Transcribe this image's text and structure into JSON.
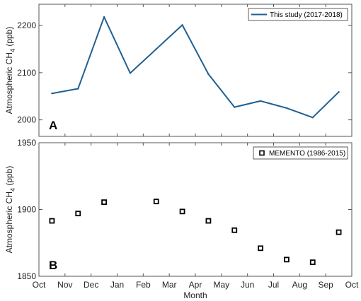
{
  "chart_data": [
    {
      "type": "line",
      "panel_label": "A",
      "ylabel": "Atmospheric CH",
      "ylabel_sub": "4",
      "ylabel_unit": " (ppb)",
      "ylim": [
        1965,
        2245
      ],
      "yticks": [
        2000,
        2100,
        2200
      ],
      "x_months": [
        "Oct",
        "Nov",
        "Dec",
        "Jan",
        "Feb",
        "Mar",
        "Apr",
        "May",
        "Jun",
        "Jul",
        "Aug",
        "Sep",
        "Oct"
      ],
      "grid": false,
      "legend": "top-right",
      "series": [
        {
          "name": "This study (2017-2018)",
          "color": "#1f5f91",
          "x": [
            0.5,
            1.5,
            2.5,
            3.5,
            4.5,
            5.5,
            6.5,
            7.5,
            8.5,
            9.5,
            10.5,
            11.5
          ],
          "values": [
            2056,
            2066,
            2218,
            2099,
            2150,
            2201,
            2097,
            2027,
            2040,
            2025,
            2005,
            2059
          ]
        }
      ]
    },
    {
      "type": "scatter",
      "panel_label": "B",
      "ylabel": "Atmospheric CH",
      "ylabel_sub": "4",
      "ylabel_unit": " (ppb)",
      "xlabel": "Month",
      "ylim": [
        1850,
        1950
      ],
      "yticks": [
        1850,
        1900,
        1950
      ],
      "x_months": [
        "Oct",
        "Nov",
        "Dec",
        "Jan",
        "Feb",
        "Mar",
        "Apr",
        "May",
        "Jun",
        "Jul",
        "Aug",
        "Sep",
        "Oct"
      ],
      "grid": false,
      "legend": "top-right",
      "series": [
        {
          "name": "MEMENTO (1986-2015)",
          "color": "#000000",
          "marker": "square",
          "x": [
            0.5,
            1.5,
            2.5,
            4.5,
            5.5,
            6.5,
            7.5,
            8.5,
            9.5,
            10.5,
            11.5
          ],
          "values": [
            1891.5,
            1897,
            1905.5,
            1906,
            1898.5,
            1891.5,
            1884.5,
            1871,
            1862.5,
            1860.5,
            1883
          ]
        }
      ]
    }
  ]
}
